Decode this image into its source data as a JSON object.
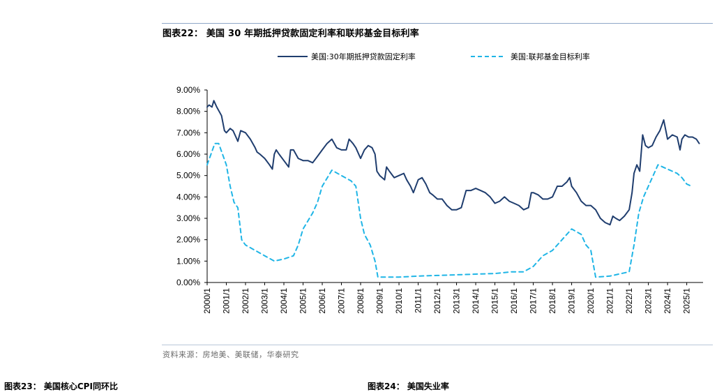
{
  "header": {
    "title": "图表22： 美国 30 年期抵押贷款固定利率和联邦基金目标利率"
  },
  "source": {
    "text": "资料来源：房地美、美联储，华泰研究"
  },
  "next_figures": {
    "left": "图表23： 美国核心CPI同环比",
    "right": "图表24： 美国失业率"
  },
  "chart_data": {
    "type": "line",
    "title": "美国 30 年期抵押贷款固定利率和联邦基金目标利率",
    "xlabel": "",
    "ylabel": "",
    "ylim": [
      0,
      9
    ],
    "y_ticks": [
      "0.00%",
      "1.00%",
      "2.00%",
      "3.00%",
      "4.00%",
      "5.00%",
      "6.00%",
      "7.00%",
      "8.00%",
      "9.00%"
    ],
    "x_ticks": [
      "2000/1",
      "2001/1",
      "2002/1",
      "2003/1",
      "2004/1",
      "2005/1",
      "2006/1",
      "2007/1",
      "2008/1",
      "2009/1",
      "2010/1",
      "2011/1",
      "2012/1",
      "2013/1",
      "2014/1",
      "2015/1",
      "2016/1",
      "2017/1",
      "2018/1",
      "2019/1",
      "2020/1",
      "2021/1",
      "2022/1",
      "2023/1",
      "2024/1",
      "2025/1"
    ],
    "x_range": [
      2000.0,
      2025.85
    ],
    "legend_position": "top",
    "series": [
      {
        "name": "美国:30年期抵押贷款固定利率",
        "color": "#1f3d6e",
        "style": "solid",
        "points": [
          [
            2000.0,
            8.2
          ],
          [
            2000.1,
            8.3
          ],
          [
            2000.25,
            8.2
          ],
          [
            2000.35,
            8.5
          ],
          [
            2000.5,
            8.2
          ],
          [
            2000.75,
            7.8
          ],
          [
            2000.9,
            7.1
          ],
          [
            2001.0,
            7.0
          ],
          [
            2001.2,
            7.2
          ],
          [
            2001.35,
            7.1
          ],
          [
            2001.5,
            6.8
          ],
          [
            2001.6,
            6.6
          ],
          [
            2001.75,
            7.1
          ],
          [
            2002.0,
            7.0
          ],
          [
            2002.25,
            6.7
          ],
          [
            2002.5,
            6.3
          ],
          [
            2002.6,
            6.1
          ],
          [
            2002.75,
            6.0
          ],
          [
            2003.0,
            5.8
          ],
          [
            2003.25,
            5.5
          ],
          [
            2003.4,
            5.3
          ],
          [
            2003.5,
            6.0
          ],
          [
            2003.6,
            6.2
          ],
          [
            2003.75,
            6.0
          ],
          [
            2004.0,
            5.7
          ],
          [
            2004.25,
            5.4
          ],
          [
            2004.35,
            6.2
          ],
          [
            2004.5,
            6.2
          ],
          [
            2004.75,
            5.8
          ],
          [
            2005.0,
            5.7
          ],
          [
            2005.25,
            5.7
          ],
          [
            2005.5,
            5.6
          ],
          [
            2005.75,
            5.9
          ],
          [
            2006.0,
            6.2
          ],
          [
            2006.25,
            6.5
          ],
          [
            2006.5,
            6.7
          ],
          [
            2006.75,
            6.3
          ],
          [
            2007.0,
            6.2
          ],
          [
            2007.25,
            6.2
          ],
          [
            2007.4,
            6.7
          ],
          [
            2007.6,
            6.5
          ],
          [
            2007.75,
            6.3
          ],
          [
            2008.0,
            5.8
          ],
          [
            2008.2,
            6.2
          ],
          [
            2008.4,
            6.4
          ],
          [
            2008.6,
            6.3
          ],
          [
            2008.75,
            6.0
          ],
          [
            2008.85,
            5.2
          ],
          [
            2009.0,
            5.0
          ],
          [
            2009.25,
            4.8
          ],
          [
            2009.35,
            5.4
          ],
          [
            2009.5,
            5.2
          ],
          [
            2009.75,
            4.9
          ],
          [
            2010.0,
            5.0
          ],
          [
            2010.25,
            5.1
          ],
          [
            2010.4,
            4.8
          ],
          [
            2010.6,
            4.5
          ],
          [
            2010.75,
            4.2
          ],
          [
            2011.0,
            4.8
          ],
          [
            2011.2,
            4.9
          ],
          [
            2011.4,
            4.6
          ],
          [
            2011.6,
            4.2
          ],
          [
            2011.75,
            4.1
          ],
          [
            2012.0,
            3.9
          ],
          [
            2012.25,
            3.9
          ],
          [
            2012.5,
            3.6
          ],
          [
            2012.75,
            3.4
          ],
          [
            2013.0,
            3.4
          ],
          [
            2013.25,
            3.5
          ],
          [
            2013.5,
            4.3
          ],
          [
            2013.75,
            4.3
          ],
          [
            2014.0,
            4.4
          ],
          [
            2014.25,
            4.3
          ],
          [
            2014.5,
            4.2
          ],
          [
            2014.75,
            4.0
          ],
          [
            2015.0,
            3.7
          ],
          [
            2015.25,
            3.8
          ],
          [
            2015.5,
            4.0
          ],
          [
            2015.75,
            3.8
          ],
          [
            2016.0,
            3.7
          ],
          [
            2016.25,
            3.6
          ],
          [
            2016.5,
            3.4
          ],
          [
            2016.75,
            3.5
          ],
          [
            2016.9,
            4.2
          ],
          [
            2017.0,
            4.2
          ],
          [
            2017.25,
            4.1
          ],
          [
            2017.5,
            3.9
          ],
          [
            2017.75,
            3.9
          ],
          [
            2018.0,
            4.0
          ],
          [
            2018.25,
            4.5
          ],
          [
            2018.5,
            4.5
          ],
          [
            2018.75,
            4.7
          ],
          [
            2018.9,
            4.9
          ],
          [
            2019.0,
            4.5
          ],
          [
            2019.25,
            4.2
          ],
          [
            2019.5,
            3.8
          ],
          [
            2019.75,
            3.6
          ],
          [
            2020.0,
            3.6
          ],
          [
            2020.25,
            3.4
          ],
          [
            2020.5,
            3.0
          ],
          [
            2020.75,
            2.8
          ],
          [
            2021.0,
            2.7
          ],
          [
            2021.15,
            3.1
          ],
          [
            2021.3,
            3.0
          ],
          [
            2021.5,
            2.9
          ],
          [
            2021.75,
            3.1
          ],
          [
            2022.0,
            3.4
          ],
          [
            2022.15,
            4.2
          ],
          [
            2022.25,
            5.1
          ],
          [
            2022.4,
            5.5
          ],
          [
            2022.55,
            5.2
          ],
          [
            2022.7,
            6.9
          ],
          [
            2022.85,
            6.4
          ],
          [
            2023.0,
            6.3
          ],
          [
            2023.2,
            6.4
          ],
          [
            2023.4,
            6.8
          ],
          [
            2023.6,
            7.1
          ],
          [
            2023.8,
            7.6
          ],
          [
            2024.0,
            6.7
          ],
          [
            2024.25,
            6.9
          ],
          [
            2024.5,
            6.8
          ],
          [
            2024.65,
            6.2
          ],
          [
            2024.75,
            6.7
          ],
          [
            2024.9,
            6.9
          ],
          [
            2025.1,
            6.8
          ],
          [
            2025.3,
            6.8
          ],
          [
            2025.5,
            6.7
          ],
          [
            2025.65,
            6.5
          ]
        ]
      },
      {
        "name": "美国:联邦基金目标利率",
        "color": "#1fb5e6",
        "style": "dashed",
        "points": [
          [
            2000.0,
            5.5
          ],
          [
            2000.2,
            6.0
          ],
          [
            2000.4,
            6.5
          ],
          [
            2000.6,
            6.5
          ],
          [
            2000.8,
            6.0
          ],
          [
            2001.0,
            5.5
          ],
          [
            2001.2,
            4.5
          ],
          [
            2001.4,
            3.75
          ],
          [
            2001.6,
            3.5
          ],
          [
            2001.8,
            2.0
          ],
          [
            2002.0,
            1.75
          ],
          [
            2002.5,
            1.5
          ],
          [
            2003.0,
            1.25
          ],
          [
            2003.5,
            1.0
          ],
          [
            2004.0,
            1.1
          ],
          [
            2004.5,
            1.25
          ],
          [
            2004.75,
            1.75
          ],
          [
            2005.0,
            2.5
          ],
          [
            2005.5,
            3.25
          ],
          [
            2005.75,
            3.75
          ],
          [
            2006.0,
            4.5
          ],
          [
            2006.5,
            5.25
          ],
          [
            2007.0,
            5.0
          ],
          [
            2007.5,
            4.75
          ],
          [
            2007.75,
            4.5
          ],
          [
            2008.0,
            3.0
          ],
          [
            2008.2,
            2.25
          ],
          [
            2008.5,
            1.75
          ],
          [
            2008.75,
            1.0
          ],
          [
            2008.9,
            0.25
          ],
          [
            2009.0,
            0.25
          ],
          [
            2010.0,
            0.25
          ],
          [
            2011.0,
            0.3
          ],
          [
            2012.0,
            0.33
          ],
          [
            2013.0,
            0.36
          ],
          [
            2014.0,
            0.39
          ],
          [
            2015.0,
            0.42
          ],
          [
            2015.9,
            0.5
          ],
          [
            2016.5,
            0.5
          ],
          [
            2017.0,
            0.75
          ],
          [
            2017.5,
            1.25
          ],
          [
            2018.0,
            1.5
          ],
          [
            2018.5,
            2.0
          ],
          [
            2019.0,
            2.5
          ],
          [
            2019.5,
            2.25
          ],
          [
            2019.75,
            1.75
          ],
          [
            2020.0,
            1.5
          ],
          [
            2020.25,
            0.25
          ],
          [
            2021.0,
            0.3
          ],
          [
            2021.5,
            0.4
          ],
          [
            2022.0,
            0.5
          ],
          [
            2022.25,
            1.75
          ],
          [
            2022.5,
            3.25
          ],
          [
            2022.75,
            4.0
          ],
          [
            2023.0,
            4.5
          ],
          [
            2023.5,
            5.5
          ],
          [
            2024.0,
            5.3
          ],
          [
            2024.5,
            5.1
          ],
          [
            2024.75,
            4.9
          ],
          [
            2025.0,
            4.6
          ],
          [
            2025.25,
            4.5
          ]
        ]
      }
    ]
  }
}
